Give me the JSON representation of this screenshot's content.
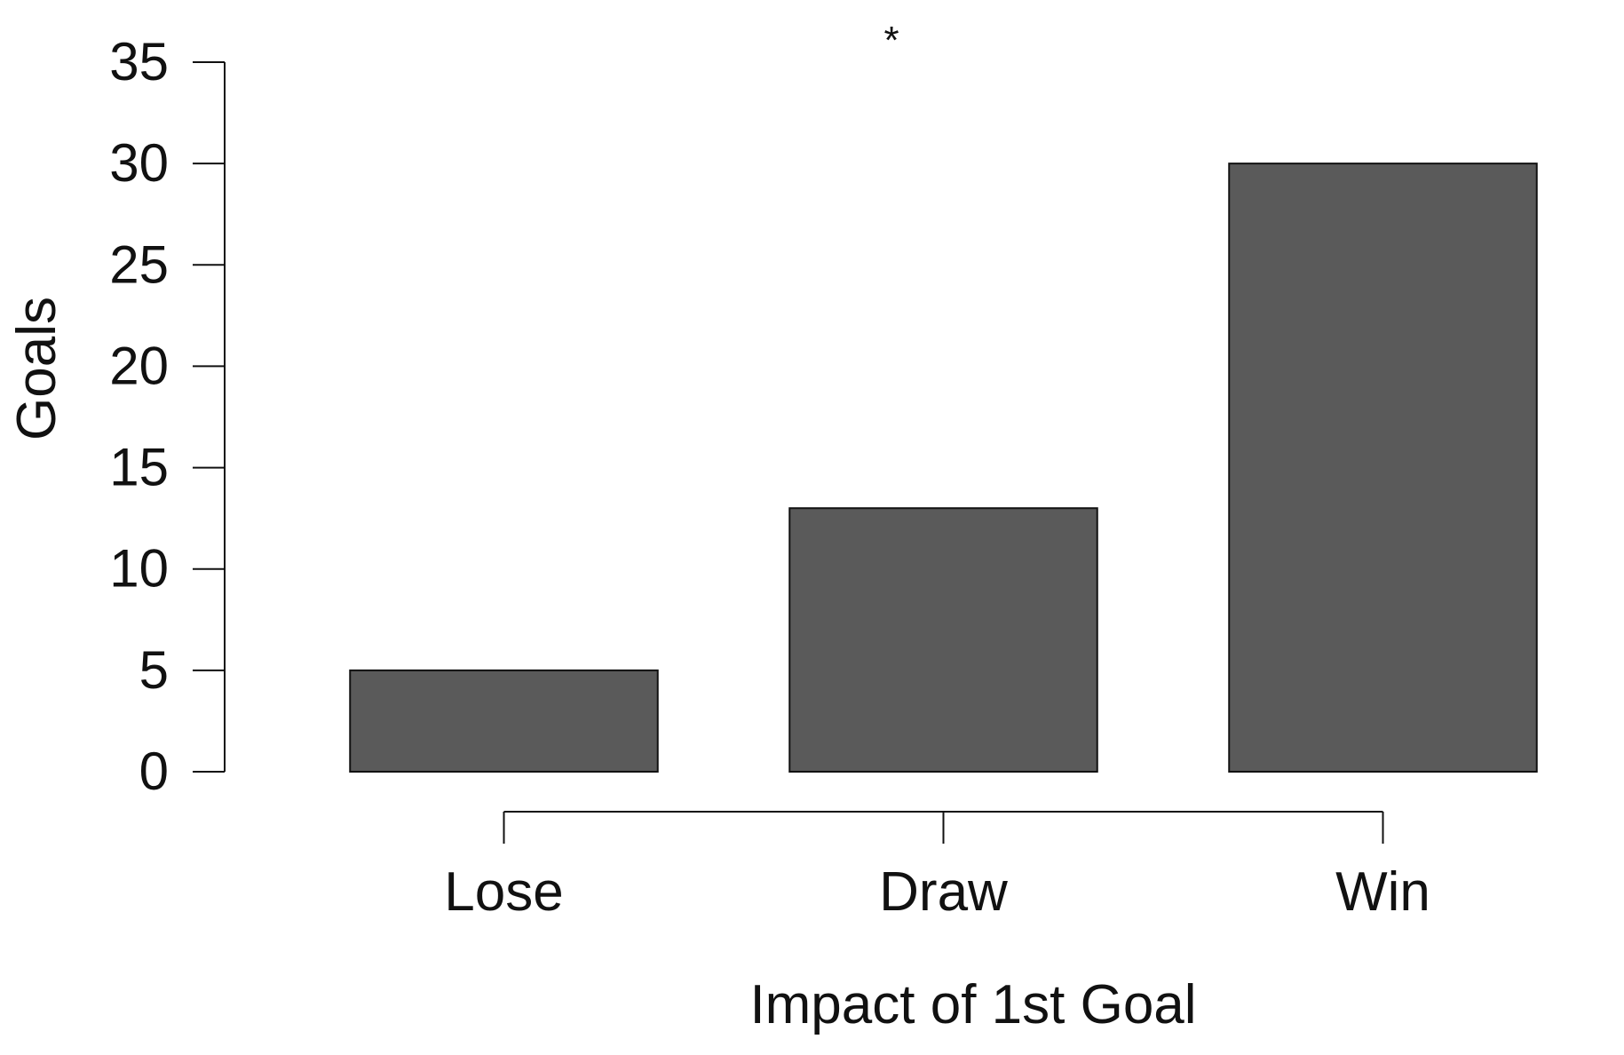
{
  "chart_data": {
    "type": "bar",
    "title": "",
    "annotation": "*",
    "xlabel": "Impact of 1st Goal",
    "ylabel": "Goals",
    "categories": [
      "Lose",
      "Draw",
      "Win"
    ],
    "values": [
      5,
      13,
      30
    ],
    "ylim": [
      0,
      35
    ],
    "yticks": [
      0,
      5,
      10,
      15,
      20,
      25,
      30,
      35
    ],
    "grid": false,
    "legend": "none",
    "colors": {
      "bar_fill": "#5a5a5a",
      "bar_stroke": "#111111",
      "axis": "#111111",
      "text": "#111111"
    }
  }
}
